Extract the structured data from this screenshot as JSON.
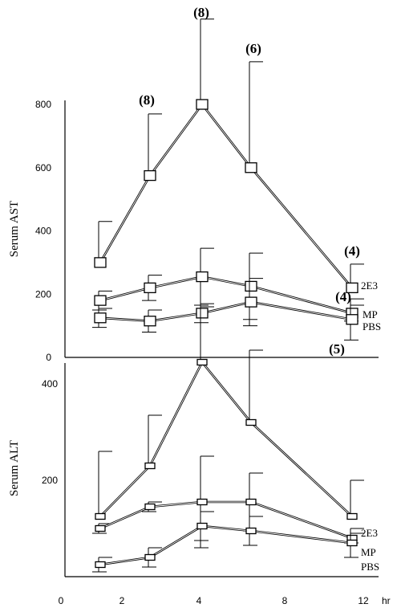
{
  "chart_data": [
    {
      "type": "line",
      "ylabel": "Serum AST",
      "ylim": [
        0,
        1000
      ],
      "yticks": [
        0,
        200,
        400,
        600,
        800
      ],
      "x": [
        1,
        3,
        5,
        7,
        11
      ],
      "series": [
        {
          "name": "2E3",
          "values": [
            300,
            575,
            800,
            600,
            220
          ],
          "errors": [
            130,
            195,
            270,
            335,
            75
          ]
        },
        {
          "name": "MP",
          "values": [
            180,
            220,
            255,
            225,
            140
          ],
          "errors": [
            30,
            40,
            90,
            105,
            25
          ]
        },
        {
          "name": "PBS",
          "values": [
            125,
            115,
            140,
            175,
            120
          ],
          "errors": [
            30,
            35,
            30,
            75,
            65
          ]
        }
      ],
      "annotations": [
        {
          "text": "(8)",
          "x": 3
        },
        {
          "text": "(8)",
          "x": 5
        },
        {
          "text": "(6)",
          "x": 7
        },
        {
          "text": "(4)",
          "x": 11
        },
        {
          "text": "(4)",
          "x": 11
        },
        {
          "text": "(5)",
          "x": 11
        }
      ]
    },
    {
      "type": "line",
      "ylabel": "Serum ALT",
      "ylim": [
        0,
        560
      ],
      "yticks": [
        200,
        400
      ],
      "x": [
        1,
        3,
        5,
        7,
        11
      ],
      "series": [
        {
          "name": "2E3",
          "values": [
            125,
            230,
            445,
            320,
            125
          ],
          "errors": [
            135,
            105,
            115,
            150,
            75
          ]
        },
        {
          "name": "MP",
          "values": [
            100,
            145,
            155,
            155,
            80
          ],
          "errors": [
            10,
            10,
            95,
            60,
            10
          ]
        },
        {
          "name": "PBS",
          "values": [
            25,
            40,
            105,
            95,
            70
          ],
          "errors": [
            15,
            20,
            30,
            30,
            30
          ]
        }
      ],
      "xlabel": "hr",
      "xticks": [
        "0",
        "2",
        "4",
        "8",
        "12"
      ]
    }
  ]
}
